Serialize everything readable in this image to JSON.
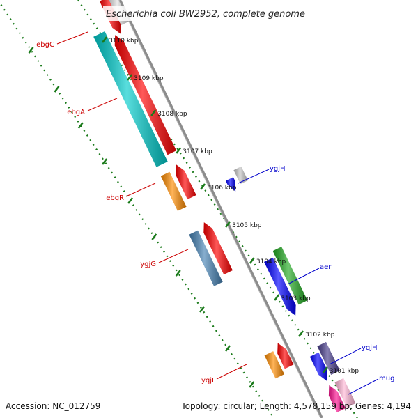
{
  "title": "Escherichia coli BW2952, complete genome",
  "footer": {
    "accession": "Accession: NC_012759",
    "summary": "Topology: circular; Length: 4,578,159 bp; Genes: 4,194"
  },
  "colors": {
    "backbone": "#8c8c8c",
    "tick": "#1a7a1a",
    "label_forward": "#0000cc",
    "label_reverse": "#cc0000"
  },
  "ticks": [
    {
      "label": "3110 kbp"
    },
    {
      "label": "3109 kbp"
    },
    {
      "label": "3108 kbp"
    },
    {
      "label": "3107 kbp"
    },
    {
      "label": "3106 kbp"
    },
    {
      "label": "3105 kbp"
    },
    {
      "label": "3104 kbp"
    },
    {
      "label": "3103 kbp"
    },
    {
      "label": "3102 kbp"
    },
    {
      "label": "3101 kbp"
    }
  ],
  "gene_labels": [
    {
      "name": "ebgC",
      "strand": "reverse"
    },
    {
      "name": "ebgA",
      "strand": "reverse"
    },
    {
      "name": "ebgR",
      "strand": "reverse"
    },
    {
      "name": "ygjG",
      "strand": "reverse"
    },
    {
      "name": "yqjI",
      "strand": "reverse"
    },
    {
      "name": "ygjH",
      "strand": "forward"
    },
    {
      "name": "aer",
      "strand": "forward"
    },
    {
      "name": "yqjH",
      "strand": "forward"
    },
    {
      "name": "mug",
      "strand": "forward"
    }
  ],
  "features": [
    {
      "color": "#ff0000"
    },
    {
      "color": "#e0e0e0"
    },
    {
      "color": "#00cccc"
    },
    {
      "color": "#ff0000"
    },
    {
      "color": "#ff8c00"
    },
    {
      "color": "#ff0000"
    },
    {
      "color": "#4682b4"
    },
    {
      "color": "#ff0000"
    },
    {
      "color": "#ff8c00"
    },
    {
      "color": "#ff0000"
    },
    {
      "color": "#0000ff"
    },
    {
      "color": "#c8c8c8"
    },
    {
      "color": "#0000ff"
    },
    {
      "color": "#22aa22"
    },
    {
      "color": "#0000ff"
    },
    {
      "color": "#483d8b"
    },
    {
      "color": "#ff1493"
    },
    {
      "color": "#ffb6d5"
    }
  ]
}
